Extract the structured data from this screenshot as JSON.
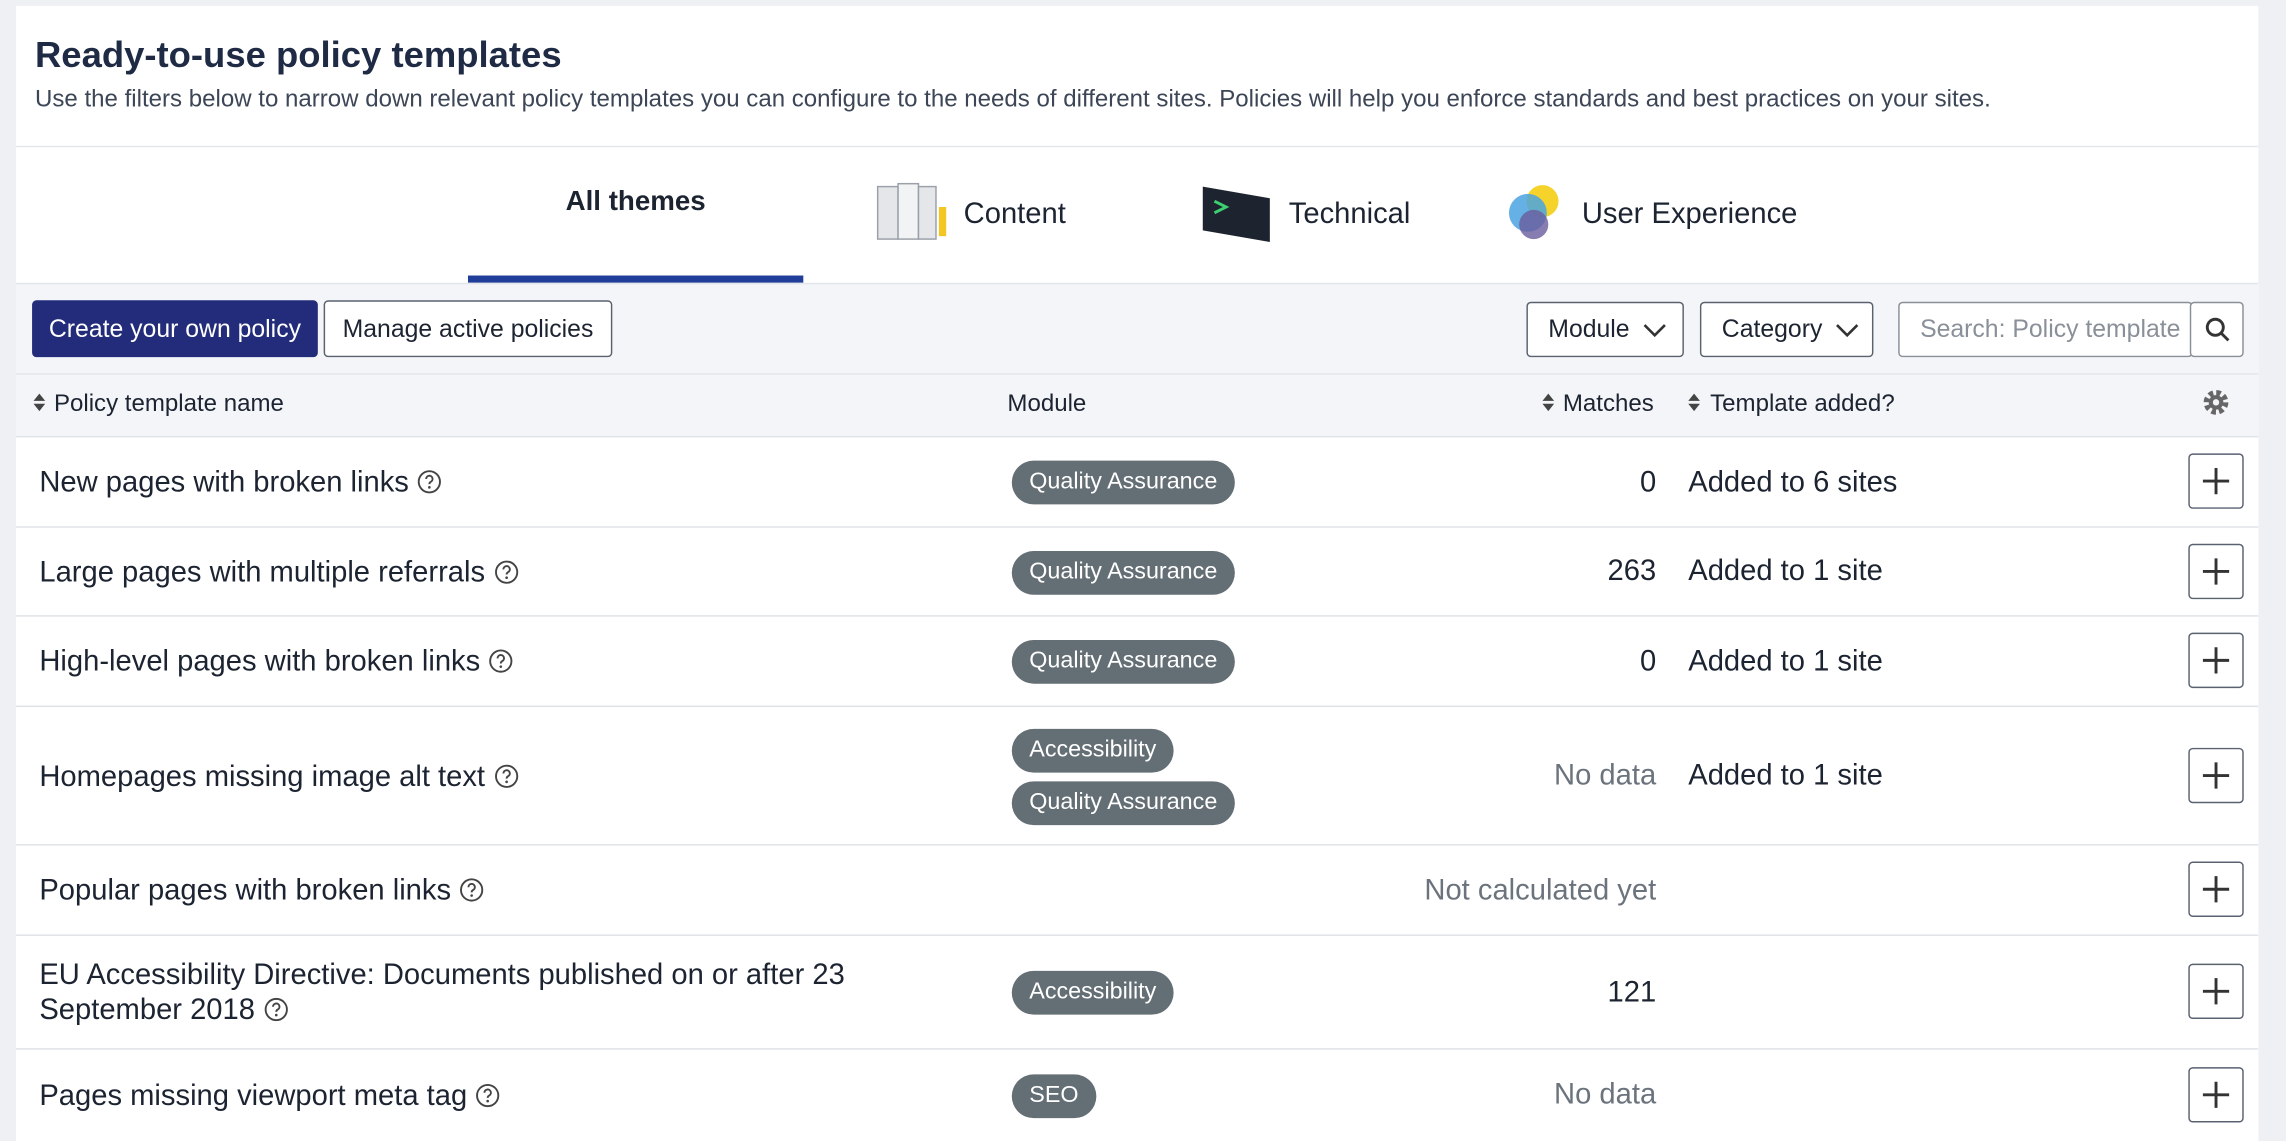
{
  "header": {
    "title": "Ready-to-use policy templates",
    "subtitle": "Use the filters below to narrow down relevant policy templates you can configure to the needs of different sites. Policies will help you enforce standards and best practices on your sites."
  },
  "tabs": [
    "All themes",
    "Content",
    "Technical",
    "User Experience"
  ],
  "toolbar": {
    "create": "Create your own policy",
    "manage": "Manage active policies",
    "filters": [
      "Module",
      "Category"
    ],
    "search_placeholder": "Search: Policy template"
  },
  "table": {
    "columns": [
      "Policy template name",
      "Module",
      "Matches",
      "Template added?"
    ],
    "rows": [
      {
        "name": "New pages with broken links",
        "modules": [
          "Quality Assurance"
        ],
        "matches": 0,
        "added": "Added to 6 sites"
      },
      {
        "name": "Large pages with multiple referrals",
        "modules": [
          "Quality Assurance"
        ],
        "matches": 263,
        "added": "Added to 1 site"
      },
      {
        "name": "High-level pages with broken links",
        "modules": [
          "Quality Assurance"
        ],
        "matches": 0,
        "added": "Added to 1 site"
      },
      {
        "name": "Homepages missing image alt text",
        "modules": [
          "Accessibility",
          "Quality Assurance"
        ],
        "matches": "No data",
        "added": "Added to 1 site"
      },
      {
        "name": "Popular pages with broken links",
        "modules": [],
        "matches": "Not calculated yet"
      },
      {
        "name": "EU Accessibility Directive: Documents published on or after 23 September 2018",
        "modules": [
          "Accessibility"
        ],
        "matches": 121
      },
      {
        "name": "Pages missing viewport meta tag",
        "modules": [
          "SEO"
        ],
        "matches": "No data"
      }
    ]
  }
}
